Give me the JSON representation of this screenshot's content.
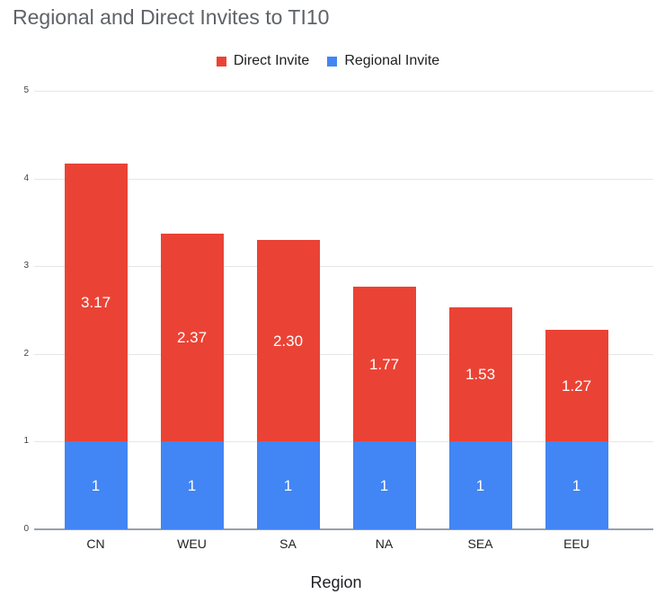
{
  "chart_data": {
    "type": "bar",
    "stacked": true,
    "title": "Regional and Direct Invites to TI10",
    "xlabel": "Region",
    "ylabel": "",
    "ylim": [
      0,
      5
    ],
    "yticks": [
      0,
      1,
      2,
      3,
      4,
      5
    ],
    "categories": [
      "CN",
      "WEU",
      "SA",
      "NA",
      "SEA",
      "EEU"
    ],
    "series": [
      {
        "name": "Regional Invite",
        "color": "#4285F4",
        "values": [
          1,
          1,
          1,
          1,
          1,
          1
        ],
        "labels": [
          "1",
          "1",
          "1",
          "1",
          "1",
          "1"
        ]
      },
      {
        "name": "Direct Invite",
        "color": "#EA4335",
        "values": [
          3.17,
          2.37,
          2.3,
          1.77,
          1.53,
          1.27
        ],
        "labels": [
          "3.17",
          "2.37",
          "2.30",
          "1.77",
          "1.53",
          "1.27"
        ]
      }
    ],
    "legend": {
      "position": "top",
      "entries": [
        {
          "label": "Direct Invite",
          "color": "#EA4335"
        },
        {
          "label": "Regional Invite",
          "color": "#4285F4"
        }
      ]
    },
    "grid": true,
    "value_label_color": "#ffffff"
  },
  "styles": {
    "title_color": "#5f6368",
    "axis_line_color": "#9aa0a6",
    "gridline_color": "#e6e6e6",
    "background": "#ffffff"
  }
}
